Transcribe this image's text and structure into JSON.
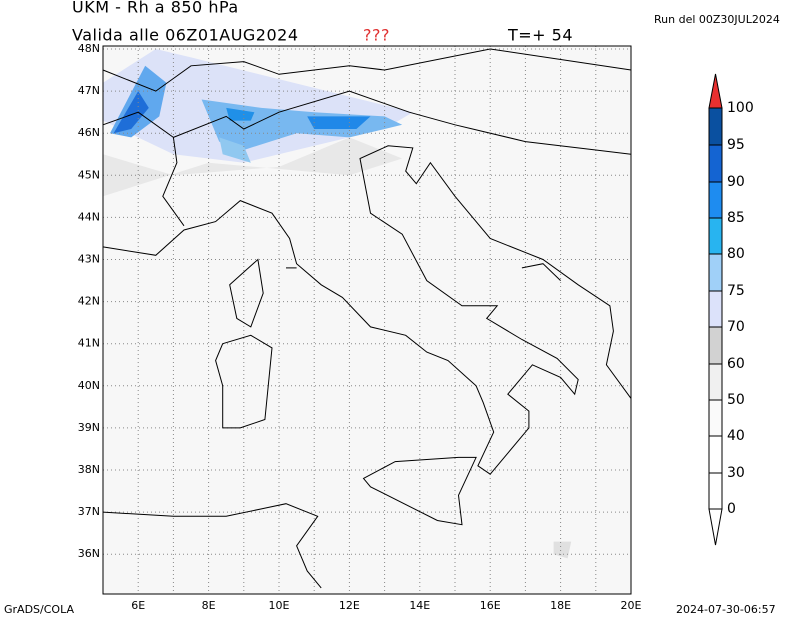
{
  "header": {
    "title": "UKM - Rh a 850 hPa",
    "valid": "Valida alle 06Z01AUG2024",
    "flag": "???",
    "step": "T=+ 54",
    "run": "Run del 00Z30JUL2024"
  },
  "map": {
    "lat_labels": [
      "48N",
      "47N",
      "46N",
      "45N",
      "44N",
      "43N",
      "42N",
      "41N",
      "40N",
      "39N",
      "38N",
      "37N",
      "36N"
    ],
    "lon_labels": [
      "6E",
      "8E",
      "10E",
      "12E",
      "14E",
      "16E",
      "18E",
      "20E"
    ]
  },
  "colorbar": {
    "labels": [
      "100",
      "95",
      "90",
      "85",
      "80",
      "75",
      "70",
      "60",
      "50",
      "40",
      "30",
      "0"
    ]
  },
  "footer": {
    "left": "GrADS/COLA",
    "right": "2024-07-30-06:57"
  }
}
